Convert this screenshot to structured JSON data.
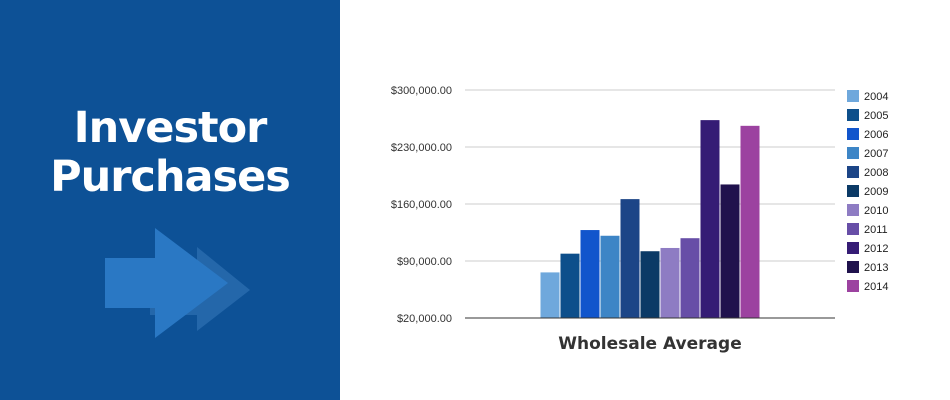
{
  "panel": {
    "title_line1": "Investor",
    "title_line2": "Purchases",
    "background": "#0d5196",
    "arrow_icon": "double-right-arrow-icon"
  },
  "chart_data": {
    "type": "bar",
    "title": "",
    "xlabel": "Wholesale Average",
    "ylabel": "",
    "ylim": [
      20000,
      300000
    ],
    "yticks": [
      20000,
      90000,
      160000,
      230000,
      300000
    ],
    "ytick_labels": [
      "$20,000.00",
      "$90,000.00",
      "$160,000.00",
      "$230,000.00",
      "$300,000.00"
    ],
    "grid": true,
    "legend_position": "right",
    "categories": [
      "Wholesale Average"
    ],
    "series": [
      {
        "name": "2004",
        "values": [
          76000
        ],
        "color": "#6fa8dc"
      },
      {
        "name": "2005",
        "values": [
          99000
        ],
        "color": "#0d4f8b"
      },
      {
        "name": "2006",
        "values": [
          128000
        ],
        "color": "#1155cc"
      },
      {
        "name": "2007",
        "values": [
          121000
        ],
        "color": "#3d85c6"
      },
      {
        "name": "2008",
        "values": [
          166000
        ],
        "color": "#1c4587"
      },
      {
        "name": "2009",
        "values": [
          102000
        ],
        "color": "#0b3a66"
      },
      {
        "name": "2010",
        "values": [
          106000
        ],
        "color": "#8e7cc3"
      },
      {
        "name": "2011",
        "values": [
          118000
        ],
        "color": "#674ea7"
      },
      {
        "name": "2012",
        "values": [
          263000
        ],
        "color": "#351c75"
      },
      {
        "name": "2013",
        "values": [
          184000
        ],
        "color": "#20124d"
      },
      {
        "name": "2014",
        "values": [
          256000
        ],
        "color": "#9c42a0"
      }
    ]
  }
}
